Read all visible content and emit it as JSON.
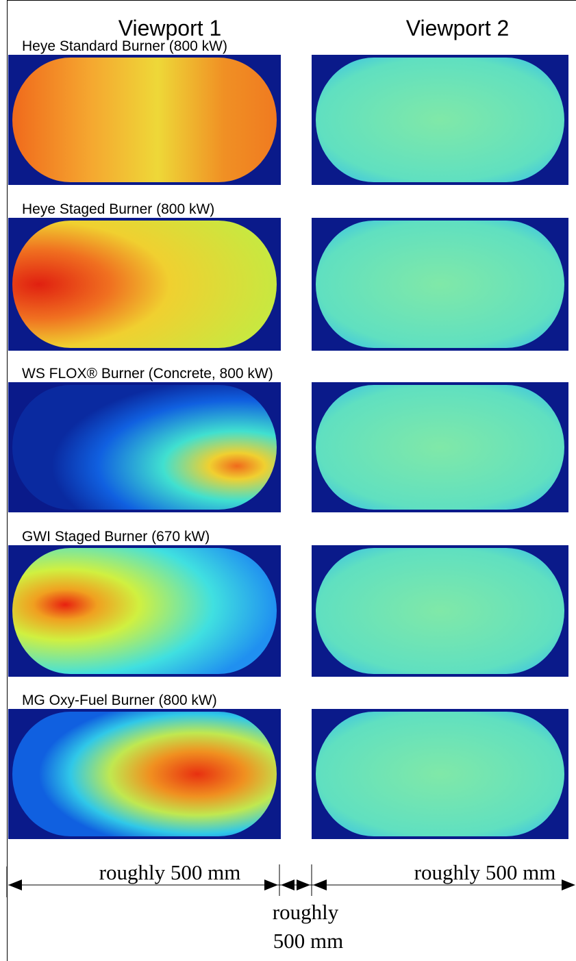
{
  "header": {
    "viewport_1": "Viewport 1",
    "viewport_2": "Viewport 2"
  },
  "rows": [
    {
      "label": "Heye Standard Burner (800 kW)"
    },
    {
      "label": "Heye Staged Burner (800 kW)"
    },
    {
      "label": "WS FLOX® Burner (Concrete, 800 kW)"
    },
    {
      "label": "GWI Staged Burner (670 kW)"
    },
    {
      "label": "MG Oxy-Fuel Burner (800 kW)"
    }
  ],
  "dimensions": {
    "left": "roughly 500 mm",
    "right": "roughly 500 mm",
    "middle": [
      "roughly",
      "500 mm"
    ]
  }
}
